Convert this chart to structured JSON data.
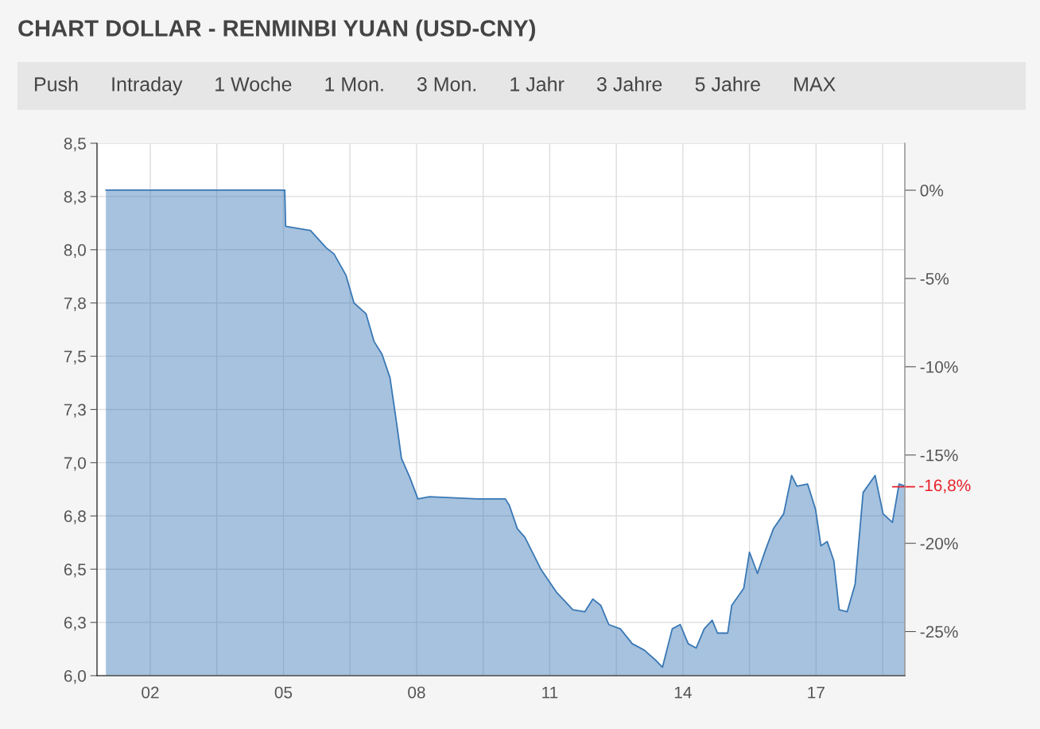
{
  "chart_data": {
    "type": "area",
    "title": "CHART DOLLAR - RENMINBI YUAN (USD-CNY)",
    "annotations": [
      "Push",
      "Intraday",
      "1 Woche",
      "1 Mon.",
      "3 Mon.",
      "1 Jahr",
      "3 Jahre",
      "5 Jahre",
      "MAX"
    ],
    "series": [
      {
        "color": "#3a78b5",
        "x": [
          2001.0,
          2005.03,
          2005.05,
          2005.61,
          2005.96,
          2006.14,
          2006.41,
          2006.59,
          2006.86,
          2007.04,
          2007.22,
          2007.4,
          2007.52,
          2007.66,
          2007.85,
          2008.03,
          2008.29,
          2009.37,
          2010.0,
          2010.09,
          2010.27,
          2010.44,
          2010.8,
          2011.16,
          2011.52,
          2011.79,
          2011.97,
          2012.15,
          2012.33,
          2012.59,
          2012.86,
          2013.13,
          2013.4,
          2013.54,
          2013.76,
          2013.94,
          2014.12,
          2014.3,
          2014.48,
          2014.66,
          2014.78,
          2015.01,
          2015.1,
          2015.37,
          2015.5,
          2015.68,
          2015.86,
          2016.04,
          2016.27,
          2016.45,
          2016.57,
          2016.81,
          2016.99,
          2017.11,
          2017.25,
          2017.4,
          2017.52,
          2017.7,
          2017.88,
          2018.06,
          2018.33,
          2018.51,
          2018.72,
          2018.87,
          2019.0
        ],
        "values": [
          8.28,
          8.28,
          8.11,
          8.09,
          8.01,
          7.98,
          7.88,
          7.75,
          7.7,
          7.57,
          7.51,
          7.4,
          7.23,
          7.02,
          6.93,
          6.83,
          6.84,
          6.83,
          6.83,
          6.8,
          6.69,
          6.65,
          6.5,
          6.39,
          6.31,
          6.3,
          6.36,
          6.33,
          6.24,
          6.22,
          6.15,
          6.12,
          6.07,
          6.04,
          6.22,
          6.24,
          6.15,
          6.13,
          6.22,
          6.26,
          6.2,
          6.2,
          6.33,
          6.41,
          6.58,
          6.48,
          6.59,
          6.69,
          6.76,
          6.94,
          6.89,
          6.9,
          6.78,
          6.61,
          6.63,
          6.54,
          6.31,
          6.3,
          6.43,
          6.86,
          6.94,
          6.76,
          6.72,
          6.9,
          6.89
        ]
      }
    ],
    "xlim": [
      2000.8,
      2019.0
    ],
    "xticks": [
      {
        "value": 2002,
        "label": "02"
      },
      {
        "value": 2005,
        "label": "05"
      },
      {
        "value": 2008,
        "label": "08"
      },
      {
        "value": 2011,
        "label": "11"
      },
      {
        "value": 2014,
        "label": "14"
      },
      {
        "value": 2017,
        "label": "17"
      },
      {
        "value": 2003.5,
        "label": null
      },
      {
        "value": 2006.5,
        "label": null
      },
      {
        "value": 2009.5,
        "label": null
      },
      {
        "value": 2012.5,
        "label": null
      },
      {
        "value": 2015.5,
        "label": null
      },
      {
        "value": 2018.5,
        "label": null
      }
    ],
    "ylim": [
      6.0,
      8.5
    ],
    "yticks": [
      {
        "value": 6.0,
        "label": "6,0"
      },
      {
        "value": 6.25,
        "label": "6,3"
      },
      {
        "value": 6.5,
        "label": "6,5"
      },
      {
        "value": 6.75,
        "label": "6,8"
      },
      {
        "value": 7.0,
        "label": "7,0"
      },
      {
        "value": 7.25,
        "label": "7,3"
      },
      {
        "value": 7.5,
        "label": "7,5"
      },
      {
        "value": 7.75,
        "label": "7,8"
      },
      {
        "value": 8.0,
        "label": "8,0"
      },
      {
        "value": 8.25,
        "label": "8,3"
      },
      {
        "value": 8.5,
        "label": "8,5"
      }
    ],
    "y2lim": [
      -27.5,
      2.66
    ],
    "y2ticks": [
      {
        "value": 0,
        "label": "0%"
      },
      {
        "value": -5,
        "label": "-5%"
      },
      {
        "value": -10,
        "label": "-10%"
      },
      {
        "value": -15,
        "label": "-15%"
      },
      {
        "value": -20,
        "label": "-20%"
      },
      {
        "value": -25,
        "label": "-25%"
      }
    ],
    "ref_lines": [
      {
        "axis": "y2",
        "value": -16.8,
        "label": "-16,8%",
        "color": "#e8202a"
      }
    ],
    "grid": true,
    "legend": false
  }
}
